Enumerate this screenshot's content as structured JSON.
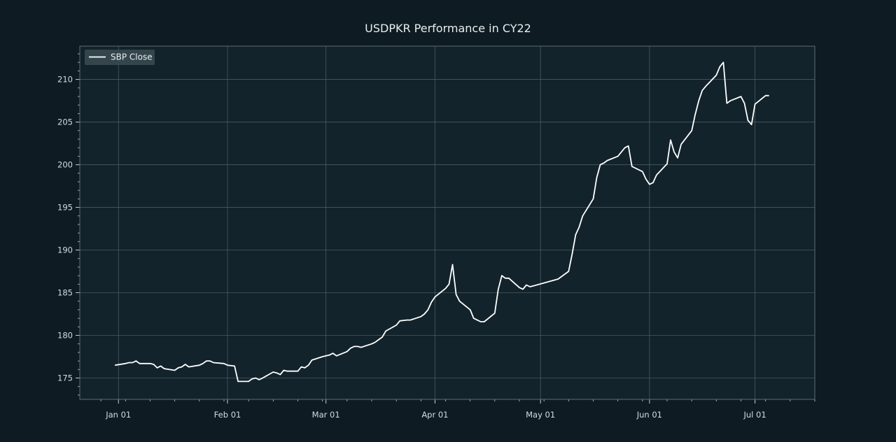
{
  "chart_data": {
    "type": "line",
    "title": "USDPKR Performance in CY22",
    "xlabel": "",
    "ylabel": "",
    "grid": true,
    "legend": {
      "placement": "top-left"
    },
    "colors": {
      "background": "#0e1b22",
      "plot_background": "#13232b",
      "grid": "#4a5a61",
      "line": "#ffffff",
      "text": "#d4dde1"
    },
    "xlim": [
      "2021-12-21",
      "2022-07-18"
    ],
    "ylim": [
      172.5,
      213.9
    ],
    "xticks": [
      {
        "date": "2022-01-01",
        "label": "Jan 01"
      },
      {
        "date": "2022-02-01",
        "label": "Feb 01"
      },
      {
        "date": "2022-03-01",
        "label": "Mar 01"
      },
      {
        "date": "2022-04-01",
        "label": "Apr 01"
      },
      {
        "date": "2022-05-01",
        "label": "May 01"
      },
      {
        "date": "2022-06-01",
        "label": "Jun 01"
      },
      {
        "date": "2022-07-01",
        "label": "Jul 01"
      }
    ],
    "yticks": [
      175,
      180,
      185,
      190,
      195,
      200,
      205,
      210
    ],
    "series": [
      {
        "name": "SBP Close",
        "x": [
          "2021-12-31",
          "2022-01-03",
          "2022-01-04",
          "2022-01-05",
          "2022-01-06",
          "2022-01-07",
          "2022-01-10",
          "2022-01-11",
          "2022-01-12",
          "2022-01-13",
          "2022-01-14",
          "2022-01-17",
          "2022-01-18",
          "2022-01-19",
          "2022-01-20",
          "2022-01-21",
          "2022-01-24",
          "2022-01-25",
          "2022-01-26",
          "2022-01-27",
          "2022-01-28",
          "2022-01-31",
          "2022-02-01",
          "2022-02-03",
          "2022-02-04",
          "2022-02-07",
          "2022-02-08",
          "2022-02-09",
          "2022-02-10",
          "2022-02-11",
          "2022-02-14",
          "2022-02-15",
          "2022-02-16",
          "2022-02-17",
          "2022-02-18",
          "2022-02-21",
          "2022-02-22",
          "2022-02-23",
          "2022-02-24",
          "2022-02-25",
          "2022-02-28",
          "2022-03-01",
          "2022-03-02",
          "2022-03-03",
          "2022-03-04",
          "2022-03-07",
          "2022-03-08",
          "2022-03-09",
          "2022-03-10",
          "2022-03-11",
          "2022-03-14",
          "2022-03-15",
          "2022-03-16",
          "2022-03-17",
          "2022-03-18",
          "2022-03-21",
          "2022-03-22",
          "2022-03-24",
          "2022-03-25",
          "2022-03-28",
          "2022-03-29",
          "2022-03-30",
          "2022-03-31",
          "2022-04-01",
          "2022-04-04",
          "2022-04-05",
          "2022-04-06",
          "2022-04-07",
          "2022-04-08",
          "2022-04-11",
          "2022-04-12",
          "2022-04-13",
          "2022-04-14",
          "2022-04-15",
          "2022-04-18",
          "2022-04-19",
          "2022-04-20",
          "2022-04-21",
          "2022-04-22",
          "2022-04-25",
          "2022-04-26",
          "2022-04-27",
          "2022-04-28",
          "2022-04-29",
          "2022-05-06",
          "2022-05-09",
          "2022-05-10",
          "2022-05-11",
          "2022-05-12",
          "2022-05-13",
          "2022-05-16",
          "2022-05-17",
          "2022-05-18",
          "2022-05-19",
          "2022-05-20",
          "2022-05-23",
          "2022-05-24",
          "2022-05-25",
          "2022-05-26",
          "2022-05-27",
          "2022-05-30",
          "2022-05-31",
          "2022-06-01",
          "2022-06-02",
          "2022-06-03",
          "2022-06-06",
          "2022-06-07",
          "2022-06-08",
          "2022-06-09",
          "2022-06-10",
          "2022-06-13",
          "2022-06-14",
          "2022-06-15",
          "2022-06-16",
          "2022-06-17",
          "2022-06-20",
          "2022-06-21",
          "2022-06-22",
          "2022-06-23",
          "2022-06-24",
          "2022-06-27",
          "2022-06-28",
          "2022-06-29",
          "2022-06-30",
          "2022-07-01",
          "2022-07-04",
          "2022-07-05"
        ],
        "y": [
          176.5,
          176.7,
          176.8,
          176.8,
          177.0,
          176.7,
          176.7,
          176.6,
          176.2,
          176.4,
          176.1,
          175.9,
          176.2,
          176.3,
          176.6,
          176.3,
          176.5,
          176.7,
          177.0,
          177.0,
          176.8,
          176.7,
          176.5,
          176.4,
          174.6,
          174.6,
          174.9,
          175.0,
          174.8,
          175.0,
          175.7,
          175.6,
          175.4,
          175.9,
          175.8,
          175.8,
          176.3,
          176.2,
          176.5,
          177.1,
          177.5,
          177.6,
          177.7,
          177.9,
          177.6,
          178.1,
          178.5,
          178.7,
          178.7,
          178.6,
          179.0,
          179.2,
          179.5,
          179.8,
          180.5,
          181.2,
          181.7,
          181.8,
          181.8,
          182.2,
          182.5,
          183.0,
          183.9,
          184.5,
          185.5,
          186.0,
          188.3,
          184.8,
          184.0,
          183.0,
          182.0,
          181.8,
          181.6,
          181.6,
          182.6,
          185.4,
          187.0,
          186.7,
          186.7,
          185.6,
          185.4,
          185.9,
          185.7,
          185.8,
          186.6,
          187.5,
          189.5,
          191.8,
          192.7,
          194.0,
          196.0,
          198.5,
          200.0,
          200.2,
          200.5,
          201.0,
          201.5,
          202.0,
          202.2,
          199.8,
          199.2,
          198.3,
          197.7,
          197.9,
          198.8,
          200.1,
          202.9,
          201.5,
          200.8,
          202.4,
          204.0,
          205.9,
          207.5,
          208.7,
          209.2,
          210.5,
          211.5,
          212.0,
          207.2,
          207.5,
          208.0,
          207.2,
          205.2,
          204.7,
          207.1,
          208.1,
          208.1
        ]
      }
    ]
  }
}
